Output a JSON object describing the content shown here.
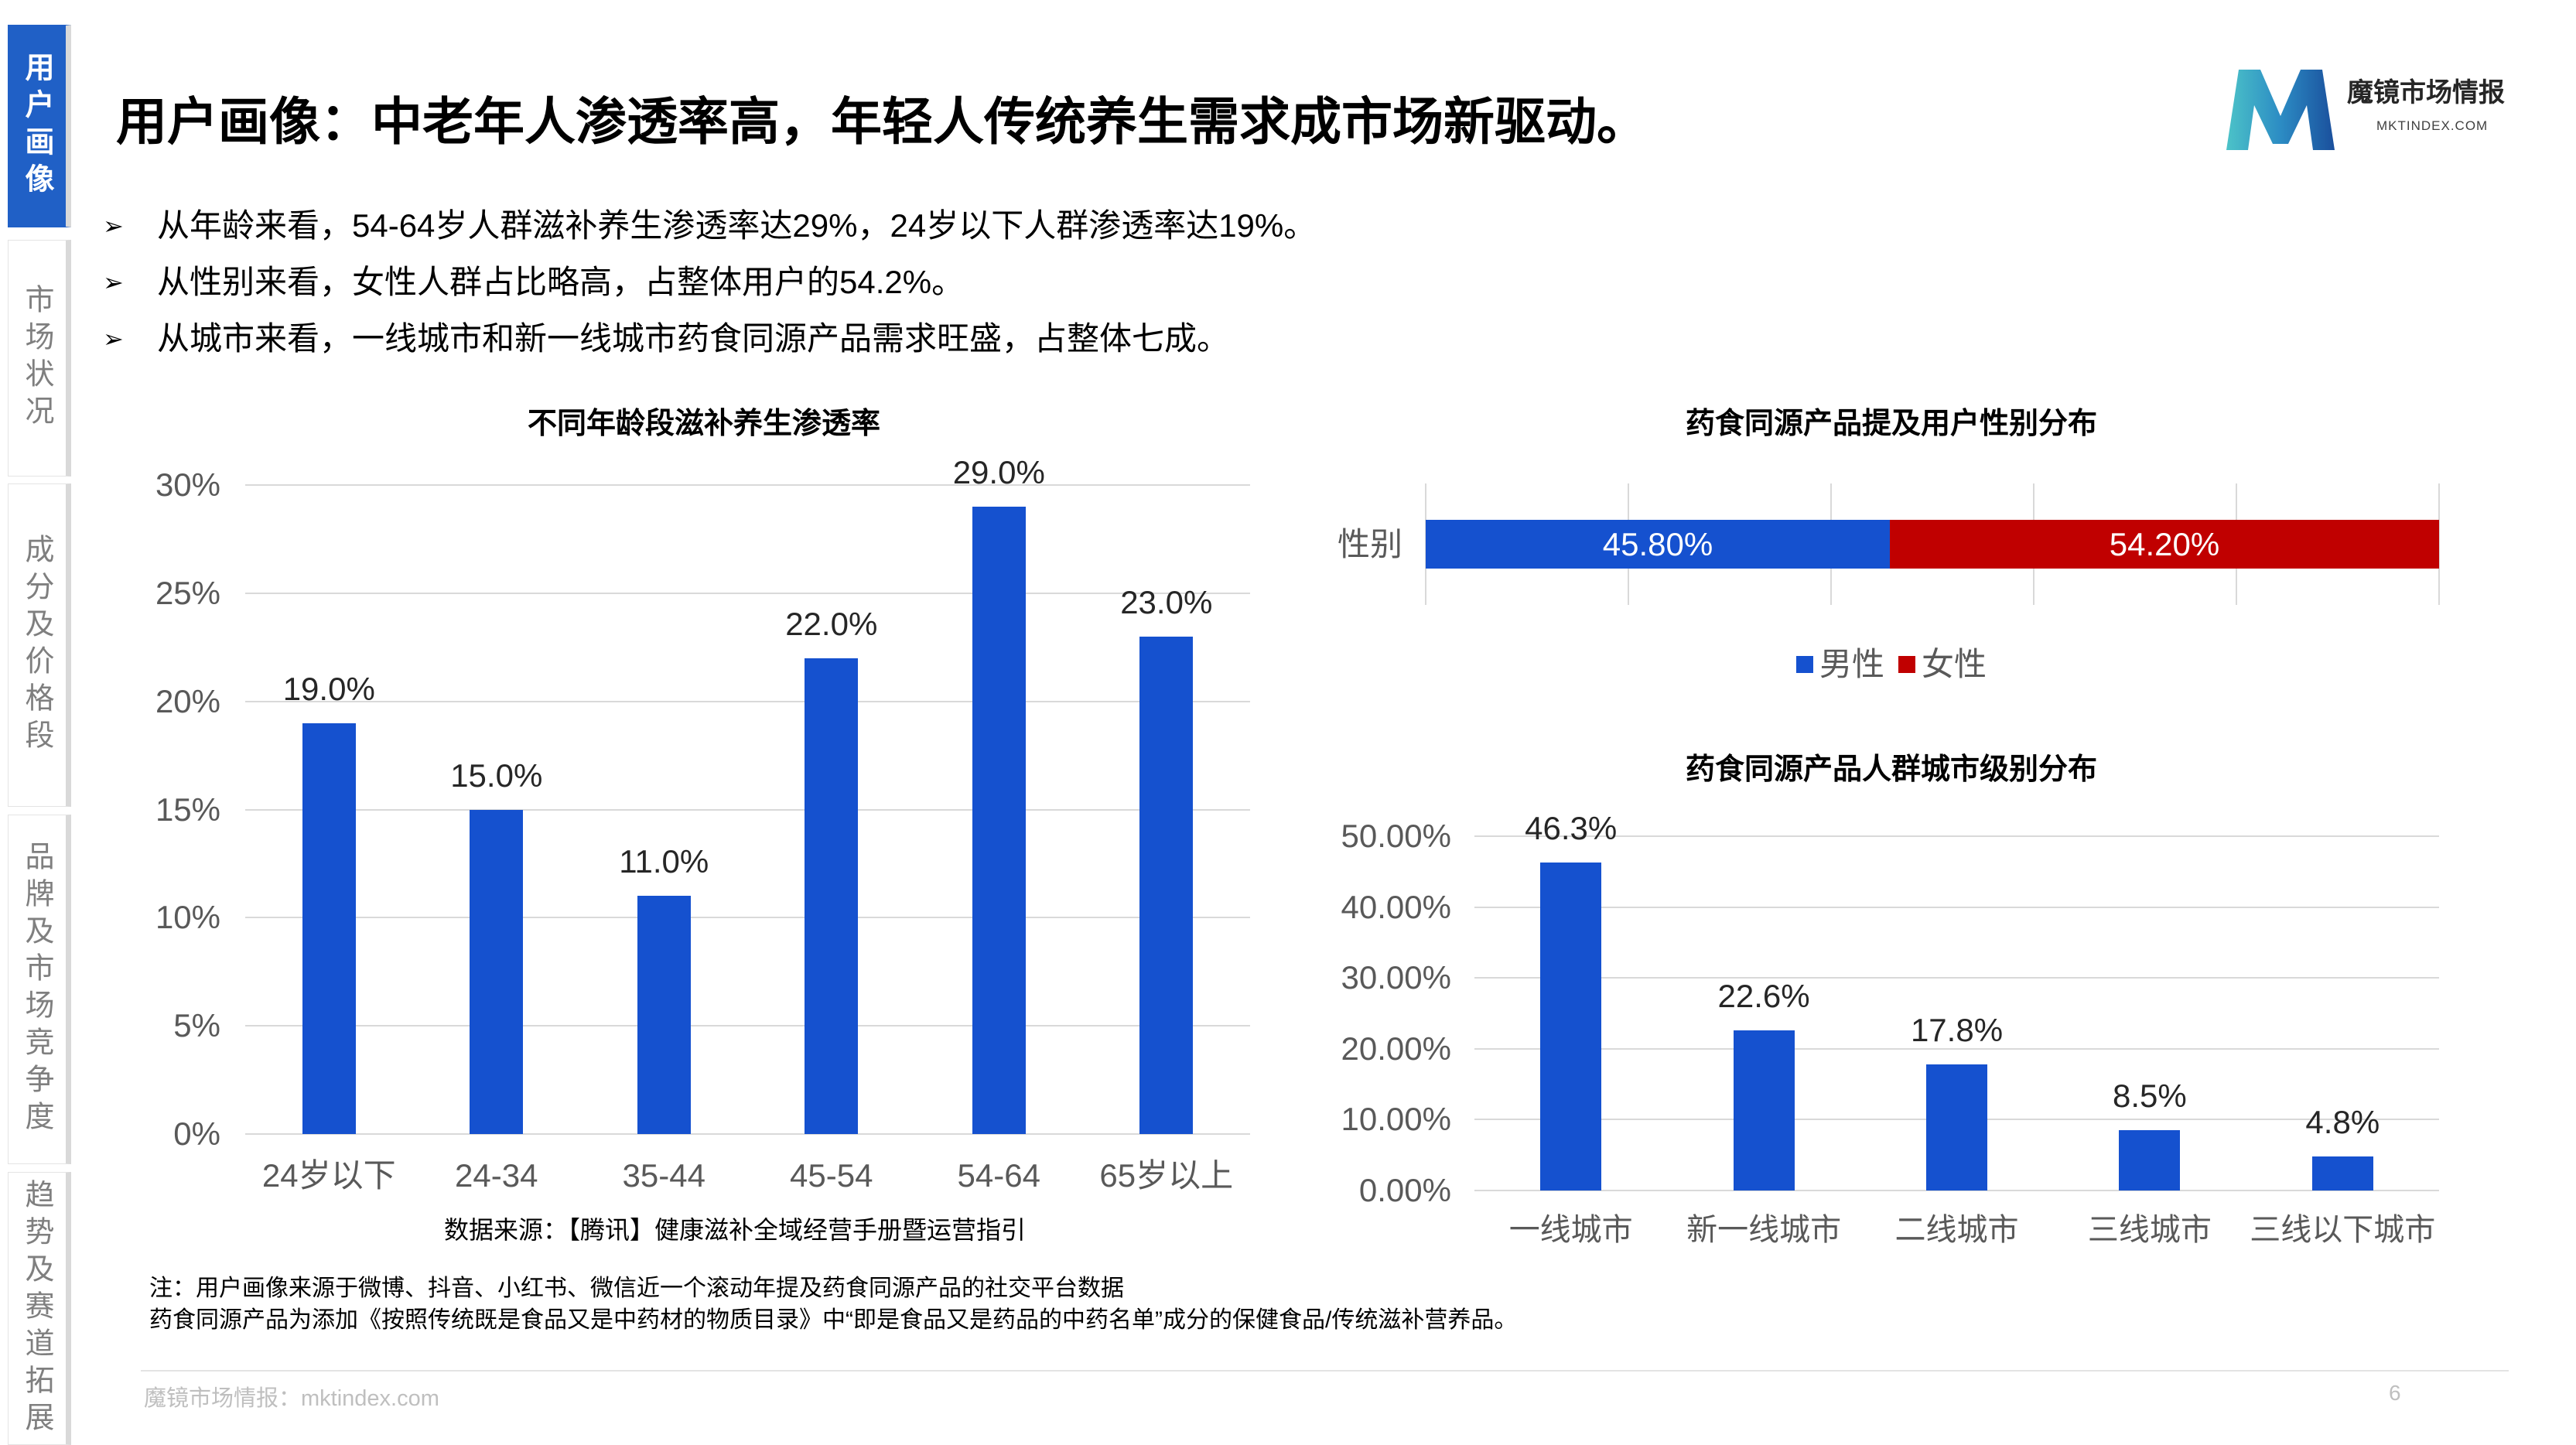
{
  "sidebar": {
    "tabs": [
      {
        "label": "用户画像",
        "active": true
      },
      {
        "label": "市场状况",
        "active": false
      },
      {
        "label": "成分及价格段",
        "active": false
      },
      {
        "label": "品牌及市场竞争度",
        "active": false
      },
      {
        "label": "趋势及赛道拓展",
        "active": false
      }
    ]
  },
  "header": {
    "title": "用户画像：中老年人渗透率高，年轻人传统养生需求成市场新驱动。"
  },
  "brand": {
    "logo_icon": "mktindex-m-logo",
    "name": "魔镜市场情报",
    "domain": "MKTINDEX.COM"
  },
  "bullets": {
    "marker": "➢",
    "items": [
      "从年龄来看，54-64岁人群滋补养生渗透率达29%，24岁以下人群渗透率达19%。",
      "从性别来看，女性人群占比略高，占整体用户的54.2%。",
      "从城市来看，一线城市和新一线城市药食同源产品需求旺盛，占整体七成。"
    ]
  },
  "chart_data": [
    {
      "type": "bar",
      "title": "不同年龄段滋补养生渗透率",
      "categories": [
        "24岁以下",
        "24-34",
        "35-44",
        "45-54",
        "54-64",
        "65岁以上"
      ],
      "values": [
        19.0,
        15.0,
        11.0,
        22.0,
        29.0,
        23.0
      ],
      "data_labels": [
        "19.0%",
        "15.0%",
        "11.0%",
        "22.0%",
        "29.0%",
        "23.0%"
      ],
      "ylim": [
        0,
        30
      ],
      "yticks": [
        {
          "value": 0,
          "label": "0%"
        },
        {
          "value": 5,
          "label": "5%"
        },
        {
          "value": 10,
          "label": "10%"
        },
        {
          "value": 15,
          "label": "15%"
        },
        {
          "value": 20,
          "label": "20%"
        },
        {
          "value": 25,
          "label": "25%"
        },
        {
          "value": 30,
          "label": "30%"
        }
      ],
      "grid": true,
      "color": "#1551cf",
      "source": "数据来源：【腾讯】健康滋补全域经营手册暨运营指引"
    },
    {
      "type": "bar",
      "orientation": "horizontal",
      "stacked": true,
      "title": "药食同源产品提及用户性别分布",
      "categories": [
        "性别"
      ],
      "series": [
        {
          "name": "男性",
          "values": [
            45.8
          ],
          "data_labels": [
            "45.80%"
          ],
          "color": "#1551cf"
        },
        {
          "name": "女性",
          "values": [
            54.2
          ],
          "data_labels": [
            "54.20%"
          ],
          "color": "#c00000"
        }
      ],
      "xlim": [
        0,
        100
      ],
      "x_gridlines": [
        0,
        20,
        40,
        60,
        80,
        100
      ],
      "grid": true,
      "legend": "bottom"
    },
    {
      "type": "bar",
      "title": "药食同源产品人群城市级别分布",
      "categories": [
        "一线城市",
        "新一线城市",
        "二线城市",
        "三线城市",
        "三线以下城市"
      ],
      "values": [
        46.3,
        22.6,
        17.8,
        8.5,
        4.8
      ],
      "data_labels": [
        "46.3%",
        "22.6%",
        "17.8%",
        "8.5%",
        "4.8%"
      ],
      "ylim": [
        0,
        50
      ],
      "yticks": [
        {
          "value": 0,
          "label": "0.00%"
        },
        {
          "value": 10,
          "label": "10.00%"
        },
        {
          "value": 20,
          "label": "20.00%"
        },
        {
          "value": 30,
          "label": "30.00%"
        },
        {
          "value": 40,
          "label": "40.00%"
        },
        {
          "value": 50,
          "label": "50.00%"
        }
      ],
      "grid": true,
      "color": "#1551cf"
    }
  ],
  "notes": {
    "line1": "注：用户画像来源于微博、抖音、小红书、微信近一个滚动年提及药食同源产品的社交平台数据",
    "line2": "药食同源产品为添加《按照传统既是食品又是中药材的物质目录》中“即是食品又是药品的中药名单”成分的保健食品/传统滋补营养品。"
  },
  "footer": {
    "source": "魔镜市场情报：mktindex.com",
    "page_number": "6"
  },
  "colors": {
    "active_tab": "#2060c6",
    "bar_blue": "#1551cf",
    "female_red": "#c00000",
    "inactive_tab_text": "#7f7f7f",
    "axis_text": "#595959",
    "gridline": "#d9d9d9"
  }
}
